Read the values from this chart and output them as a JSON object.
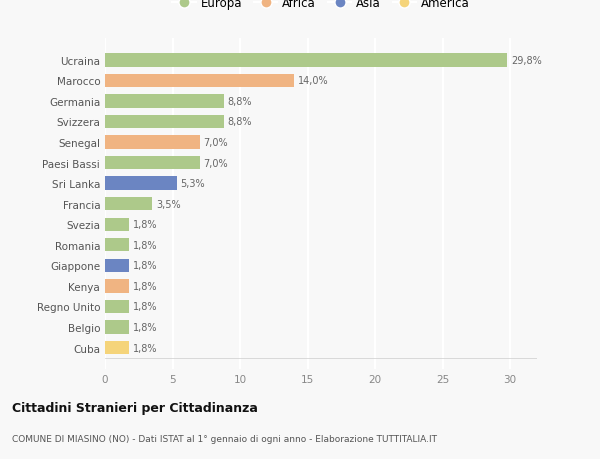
{
  "countries": [
    "Ucraina",
    "Marocco",
    "Germania",
    "Svizzera",
    "Senegal",
    "Paesi Bassi",
    "Sri Lanka",
    "Francia",
    "Svezia",
    "Romania",
    "Giappone",
    "Kenya",
    "Regno Unito",
    "Belgio",
    "Cuba"
  ],
  "values": [
    29.8,
    14.0,
    8.8,
    8.8,
    7.0,
    7.0,
    5.3,
    3.5,
    1.8,
    1.8,
    1.8,
    1.8,
    1.8,
    1.8,
    1.8
  ],
  "labels": [
    "29,8%",
    "14,0%",
    "8,8%",
    "8,8%",
    "7,0%",
    "7,0%",
    "5,3%",
    "3,5%",
    "1,8%",
    "1,8%",
    "1,8%",
    "1,8%",
    "1,8%",
    "1,8%",
    "1,8%"
  ],
  "continents": [
    "Europa",
    "Africa",
    "Europa",
    "Europa",
    "Africa",
    "Europa",
    "Asia",
    "Europa",
    "Europa",
    "Europa",
    "Asia",
    "Africa",
    "Europa",
    "Europa",
    "America"
  ],
  "colors": {
    "Europa": "#adc98a",
    "Africa": "#f0b482",
    "Asia": "#6b85c2",
    "America": "#f5d47a"
  },
  "legend_order": [
    "Europa",
    "Africa",
    "Asia",
    "America"
  ],
  "title": "Cittadini Stranieri per Cittadinanza",
  "subtitle": "COMUNE DI MIASINO (NO) - Dati ISTAT al 1° gennaio di ogni anno - Elaborazione TUTTITALIA.IT",
  "xlim": [
    0,
    32
  ],
  "xticks": [
    0,
    5,
    10,
    15,
    20,
    25,
    30
  ],
  "background_color": "#f8f8f8",
  "grid_color": "#ffffff"
}
